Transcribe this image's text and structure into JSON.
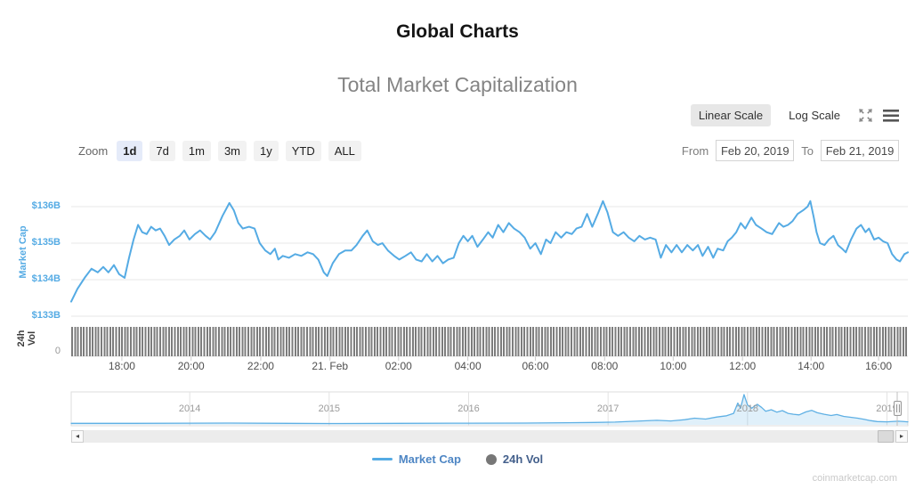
{
  "header": {
    "title": "Global Charts"
  },
  "chart": {
    "title": "Total Market Capitalization",
    "scale_toggle": {
      "linear": "Linear Scale",
      "log": "Log Scale",
      "selected": "Linear Scale"
    },
    "zoom": {
      "label": "Zoom",
      "options": [
        "1d",
        "7d",
        "1m",
        "3m",
        "1y",
        "YTD",
        "ALL"
      ],
      "selected": "1d"
    },
    "range": {
      "from_label": "From",
      "from_value": "Feb 20, 2019",
      "to_label": "To",
      "to_value": "Feb 21, 2019"
    },
    "legend": [
      {
        "label": "Market Cap",
        "swatch": "line",
        "color": "#55abe4",
        "text_color": "#4e86c4"
      },
      {
        "label": "24h Vol",
        "swatch": "circle",
        "color": "#777777",
        "text_color": "#44608c"
      }
    ],
    "watermark": "coinmarketcap.com",
    "colors": {
      "accent_blue": "#55abe4",
      "grid": "#e7e7e7",
      "bars": "#7c7c7c",
      "nav_fill": "rgba(85,171,228,0.18)"
    }
  },
  "chart_data": [
    {
      "type": "line",
      "name": "Market Cap",
      "ylabel": "Market Cap",
      "y_ticks": [
        "$133B",
        "$134B",
        "$135B",
        "$136B"
      ],
      "y_tick_values": [
        133,
        134,
        135,
        136
      ],
      "ylim": [
        132.9,
        136.5
      ],
      "x_ticks": [
        "18:00",
        "20:00",
        "22:00",
        "21. Feb",
        "02:00",
        "04:00",
        "06:00",
        "08:00",
        "10:00",
        "12:00",
        "14:00",
        "16:00"
      ],
      "x_tick_hours": [
        1.47,
        3.48,
        5.5,
        7.51,
        9.5,
        11.51,
        13.47,
        15.48,
        17.47,
        19.48,
        21.47,
        23.43
      ],
      "xlim_hours": [
        0,
        24.28
      ],
      "color": "#55abe4",
      "points_hours_value_billions": [
        [
          0,
          133.4
        ],
        [
          0.18,
          133.75
        ],
        [
          0.39,
          134.05
        ],
        [
          0.59,
          134.3
        ],
        [
          0.77,
          134.2
        ],
        [
          0.93,
          134.35
        ],
        [
          1.08,
          134.2
        ],
        [
          1.24,
          134.4
        ],
        [
          1.39,
          134.15
        ],
        [
          1.55,
          134.05
        ],
        [
          1.68,
          134.6
        ],
        [
          1.81,
          135.1
        ],
        [
          1.94,
          135.5
        ],
        [
          2.06,
          135.3
        ],
        [
          2.19,
          135.25
        ],
        [
          2.32,
          135.45
        ],
        [
          2.45,
          135.35
        ],
        [
          2.58,
          135.4
        ],
        [
          2.71,
          135.2
        ],
        [
          2.84,
          134.95
        ],
        [
          2.99,
          135.1
        ],
        [
          3.15,
          135.2
        ],
        [
          3.28,
          135.35
        ],
        [
          3.43,
          135.1
        ],
        [
          3.59,
          135.25
        ],
        [
          3.74,
          135.35
        ],
        [
          3.9,
          135.2
        ],
        [
          4.03,
          135.1
        ],
        [
          4.18,
          135.3
        ],
        [
          4.39,
          135.75
        ],
        [
          4.59,
          136.1
        ],
        [
          4.72,
          135.9
        ],
        [
          4.85,
          135.55
        ],
        [
          4.98,
          135.4
        ],
        [
          5.16,
          135.45
        ],
        [
          5.32,
          135.4
        ],
        [
          5.47,
          135
        ],
        [
          5.63,
          134.8
        ],
        [
          5.78,
          134.7
        ],
        [
          5.91,
          134.85
        ],
        [
          6.01,
          134.55
        ],
        [
          6.14,
          134.65
        ],
        [
          6.32,
          134.6
        ],
        [
          6.5,
          134.7
        ],
        [
          6.68,
          134.65
        ],
        [
          6.86,
          134.75
        ],
        [
          7.02,
          134.7
        ],
        [
          7.17,
          134.55
        ],
        [
          7.33,
          134.2
        ],
        [
          7.43,
          134.1
        ],
        [
          7.59,
          134.45
        ],
        [
          7.77,
          134.7
        ],
        [
          7.95,
          134.8
        ],
        [
          8.13,
          134.8
        ],
        [
          8.28,
          134.95
        ],
        [
          8.46,
          135.2
        ],
        [
          8.59,
          135.35
        ],
        [
          8.75,
          135.05
        ],
        [
          8.9,
          134.95
        ],
        [
          9.03,
          135
        ],
        [
          9.19,
          134.8
        ],
        [
          9.37,
          134.65
        ],
        [
          9.52,
          134.55
        ],
        [
          9.7,
          134.65
        ],
        [
          9.86,
          134.75
        ],
        [
          10.01,
          134.55
        ],
        [
          10.17,
          134.5
        ],
        [
          10.32,
          134.7
        ],
        [
          10.48,
          134.5
        ],
        [
          10.63,
          134.65
        ],
        [
          10.79,
          134.45
        ],
        [
          10.94,
          134.55
        ],
        [
          11.1,
          134.6
        ],
        [
          11.25,
          135
        ],
        [
          11.38,
          135.2
        ],
        [
          11.51,
          135.05
        ],
        [
          11.64,
          135.2
        ],
        [
          11.79,
          134.9
        ],
        [
          11.95,
          135.1
        ],
        [
          12.1,
          135.3
        ],
        [
          12.23,
          135.15
        ],
        [
          12.39,
          135.5
        ],
        [
          12.54,
          135.3
        ],
        [
          12.7,
          135.55
        ],
        [
          12.85,
          135.4
        ],
        [
          13.01,
          135.3
        ],
        [
          13.16,
          135.15
        ],
        [
          13.32,
          134.85
        ],
        [
          13.47,
          135
        ],
        [
          13.63,
          134.7
        ],
        [
          13.78,
          135.1
        ],
        [
          13.91,
          135
        ],
        [
          14.06,
          135.3
        ],
        [
          14.22,
          135.15
        ],
        [
          14.37,
          135.3
        ],
        [
          14.53,
          135.25
        ],
        [
          14.66,
          135.4
        ],
        [
          14.81,
          135.45
        ],
        [
          14.97,
          135.8
        ],
        [
          15.12,
          135.45
        ],
        [
          15.28,
          135.8
        ],
        [
          15.43,
          136.15
        ],
        [
          15.56,
          135.85
        ],
        [
          15.72,
          135.3
        ],
        [
          15.87,
          135.2
        ],
        [
          16.03,
          135.3
        ],
        [
          16.18,
          135.15
        ],
        [
          16.34,
          135.05
        ],
        [
          16.49,
          135.2
        ],
        [
          16.65,
          135.1
        ],
        [
          16.8,
          135.15
        ],
        [
          16.96,
          135.1
        ],
        [
          17.11,
          134.6
        ],
        [
          17.26,
          134.95
        ],
        [
          17.42,
          134.75
        ],
        [
          17.57,
          134.95
        ],
        [
          17.72,
          134.75
        ],
        [
          17.88,
          134.95
        ],
        [
          18.04,
          134.8
        ],
        [
          18.19,
          134.95
        ],
        [
          18.32,
          134.65
        ],
        [
          18.48,
          134.9
        ],
        [
          18.63,
          134.6
        ],
        [
          18.76,
          134.85
        ],
        [
          18.92,
          134.8
        ],
        [
          19.05,
          135.05
        ],
        [
          19.17,
          135.15
        ],
        [
          19.3,
          135.3
        ],
        [
          19.43,
          135.55
        ],
        [
          19.56,
          135.4
        ],
        [
          19.74,
          135.7
        ],
        [
          19.87,
          135.5
        ],
        [
          20.03,
          135.4
        ],
        [
          20.18,
          135.3
        ],
        [
          20.34,
          135.25
        ],
        [
          20.44,
          135.4
        ],
        [
          20.54,
          135.55
        ],
        [
          20.67,
          135.45
        ],
        [
          20.8,
          135.5
        ],
        [
          20.93,
          135.6
        ],
        [
          21.08,
          135.8
        ],
        [
          21.24,
          135.9
        ],
        [
          21.37,
          136
        ],
        [
          21.45,
          136.15
        ],
        [
          21.55,
          135.7
        ],
        [
          21.63,
          135.3
        ],
        [
          21.73,
          135
        ],
        [
          21.86,
          134.95
        ],
        [
          21.99,
          135.1
        ],
        [
          22.12,
          135.2
        ],
        [
          22.25,
          134.95
        ],
        [
          22.37,
          134.85
        ],
        [
          22.48,
          134.75
        ],
        [
          22.63,
          135.1
        ],
        [
          22.79,
          135.4
        ],
        [
          22.92,
          135.5
        ],
        [
          23.05,
          135.3
        ],
        [
          23.15,
          135.4
        ],
        [
          23.3,
          135.1
        ],
        [
          23.43,
          135.15
        ],
        [
          23.56,
          135.05
        ],
        [
          23.69,
          135
        ],
        [
          23.82,
          134.7
        ],
        [
          23.95,
          134.55
        ],
        [
          24.05,
          134.5
        ],
        [
          24.18,
          134.7
        ],
        [
          24.28,
          134.75
        ]
      ]
    },
    {
      "type": "bar",
      "name": "24h Vol",
      "ylabel": "24h Vol",
      "y_ticks": [
        "0"
      ],
      "note": "dense near-uniform volume bars across full width",
      "relative_height": 0.92,
      "color": "#7c7c7c"
    },
    {
      "type": "area",
      "name": "navigator",
      "x_ticks": [
        "2014",
        "2015",
        "2016",
        "2017",
        "2018",
        "2019"
      ],
      "x_tick_years": [
        2014,
        2015,
        2016,
        2017,
        2018,
        2019
      ],
      "xlim_years": [
        2013.15,
        2019.15
      ],
      "color": "#5fb0e4",
      "fill": "rgba(85,171,228,0.18)",
      "points_year_fraction": [
        [
          2013.15,
          0.05
        ],
        [
          2013.6,
          0.05
        ],
        [
          2014,
          0.055
        ],
        [
          2014.3,
          0.06
        ],
        [
          2014.7,
          0.05
        ],
        [
          2015,
          0.045
        ],
        [
          2015.5,
          0.05
        ],
        [
          2016,
          0.055
        ],
        [
          2016.4,
          0.06
        ],
        [
          2016.7,
          0.07
        ],
        [
          2016.9,
          0.08
        ],
        [
          2017.05,
          0.09
        ],
        [
          2017.2,
          0.12
        ],
        [
          2017.35,
          0.15
        ],
        [
          2017.45,
          0.13
        ],
        [
          2017.55,
          0.17
        ],
        [
          2017.62,
          0.22
        ],
        [
          2017.7,
          0.19
        ],
        [
          2017.78,
          0.26
        ],
        [
          2017.85,
          0.3
        ],
        [
          2017.9,
          0.38
        ],
        [
          2017.93,
          0.72
        ],
        [
          2017.95,
          0.55
        ],
        [
          2017.975,
          1
        ],
        [
          2018,
          0.66
        ],
        [
          2018.03,
          0.55
        ],
        [
          2018.07,
          0.68
        ],
        [
          2018.1,
          0.58
        ],
        [
          2018.13,
          0.45
        ],
        [
          2018.17,
          0.5
        ],
        [
          2018.21,
          0.42
        ],
        [
          2018.25,
          0.47
        ],
        [
          2018.29,
          0.38
        ],
        [
          2018.33,
          0.35
        ],
        [
          2018.37,
          0.33
        ],
        [
          2018.42,
          0.43
        ],
        [
          2018.46,
          0.48
        ],
        [
          2018.5,
          0.4
        ],
        [
          2018.55,
          0.35
        ],
        [
          2018.6,
          0.31
        ],
        [
          2018.64,
          0.34
        ],
        [
          2018.69,
          0.28
        ],
        [
          2018.74,
          0.25
        ],
        [
          2018.79,
          0.22
        ],
        [
          2018.84,
          0.18
        ],
        [
          2018.88,
          0.14
        ],
        [
          2018.93,
          0.11
        ],
        [
          2019,
          0.1
        ],
        [
          2019.08,
          0.12
        ],
        [
          2019.15,
          0.1
        ]
      ]
    }
  ]
}
